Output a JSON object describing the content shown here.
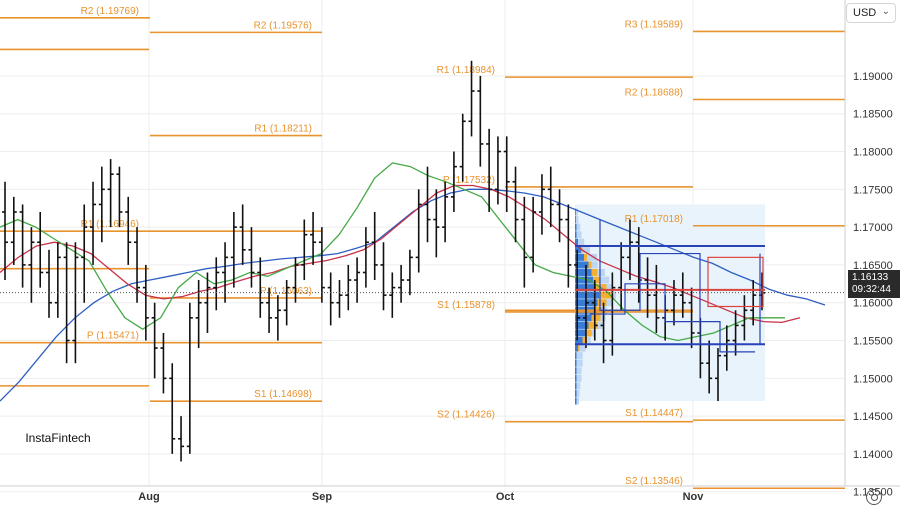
{
  "currency": {
    "label": "USD",
    "chevron": "chevron-down-icon"
  },
  "logo": {
    "text": "InstaFintech"
  },
  "price_tag": {
    "price": "1.16133",
    "time": "09:32:44"
  },
  "settings_icon": "gear-icon",
  "colors": {
    "pivot": "#e8932e",
    "blue_ma": "#2f5ec4",
    "red_ma": "#c8324a",
    "green_ma": "#45a845",
    "profile_dark": "#3a7bd5",
    "profile_light": "#b9d3ef",
    "profile_orange": "#f2b134",
    "range_box": "#e9f3fc",
    "level_blue": "#2843b8",
    "level_red": "#d9453d"
  },
  "chart_data": {
    "type": "ohlc",
    "ylim": [
      1.132,
      1.1985
    ],
    "yticks": [
      "1.19000",
      "1.18500",
      "1.18000",
      "1.17500",
      "1.17000",
      "1.16500",
      "1.16000",
      "1.15500",
      "1.15000",
      "1.14500",
      "1.14000",
      "1.13500"
    ],
    "xticks": [
      "Aug",
      "Sep",
      "Oct",
      "Nov"
    ],
    "current_price": 1.16133,
    "pivot_levels": [
      {
        "label": "R2 (1.19769)",
        "value": 1.19769
      },
      {
        "label": "R2 (1.19576)",
        "value": 1.19576
      },
      {
        "label": "R1 (1.18211)",
        "value": 1.18211
      },
      {
        "label": "P (1.16063)",
        "value": 1.16063
      },
      {
        "label": "S1 (1.14698)",
        "value": 1.14698
      },
      {
        "label": "R1 (1.18984)",
        "value": 1.18984
      },
      {
        "label": "P (1.17532)",
        "value": 1.17532
      },
      {
        "label": "S1 (1.15878)",
        "value": 1.15878
      },
      {
        "label": "S2 (1.14426)",
        "value": 1.14426
      },
      {
        "label": "R3 (1.19589)",
        "value": 1.19589
      },
      {
        "label": "R2 (1.18688)",
        "value": 1.18688
      },
      {
        "label": "R1 (1.17018)",
        "value": 1.17018
      },
      {
        "label": "S1 (1.14447)",
        "value": 1.14447
      },
      {
        "label": "S2 (1.13546)",
        "value": 1.13546
      },
      {
        "label": "R1 (1.16946)",
        "value": 1.16946
      },
      {
        "label": "P (1.15471)",
        "value": 1.15471
      }
    ],
    "bars": [
      [
        1.172,
        1.176,
        1.163,
        1.168
      ],
      [
        1.168,
        1.174,
        1.165,
        1.172
      ],
      [
        1.172,
        1.173,
        1.162,
        1.165
      ],
      [
        1.165,
        1.17,
        1.16,
        1.168
      ],
      [
        1.168,
        1.172,
        1.162,
        1.164
      ],
      [
        1.164,
        1.167,
        1.158,
        1.16
      ],
      [
        1.16,
        1.168,
        1.158,
        1.166
      ],
      [
        1.166,
        1.168,
        1.152,
        1.155
      ],
      [
        1.155,
        1.168,
        1.152,
        1.166
      ],
      [
        1.166,
        1.173,
        1.16,
        1.17
      ],
      [
        1.17,
        1.176,
        1.165,
        1.173
      ],
      [
        1.173,
        1.178,
        1.168,
        1.175
      ],
      [
        1.175,
        1.179,
        1.17,
        1.177
      ],
      [
        1.177,
        1.178,
        1.17,
        1.172
      ],
      [
        1.172,
        1.174,
        1.165,
        1.168
      ],
      [
        1.168,
        1.17,
        1.16,
        1.162
      ],
      [
        1.162,
        1.165,
        1.155,
        1.158
      ],
      [
        1.158,
        1.16,
        1.15,
        1.154
      ],
      [
        1.154,
        1.156,
        1.148,
        1.15
      ],
      [
        1.15,
        1.152,
        1.14,
        1.142
      ],
      [
        1.142,
        1.145,
        1.139,
        1.141
      ],
      [
        1.141,
        1.16,
        1.14,
        1.158
      ],
      [
        1.158,
        1.163,
        1.154,
        1.16
      ],
      [
        1.16,
        1.164,
        1.156,
        1.162
      ],
      [
        1.162,
        1.166,
        1.159,
        1.164
      ],
      [
        1.164,
        1.168,
        1.16,
        1.166
      ],
      [
        1.166,
        1.172,
        1.162,
        1.17
      ],
      [
        1.17,
        1.173,
        1.165,
        1.167
      ],
      [
        1.167,
        1.17,
        1.162,
        1.164
      ],
      [
        1.164,
        1.166,
        1.158,
        1.16
      ],
      [
        1.16,
        1.162,
        1.156,
        1.158
      ],
      [
        1.158,
        1.161,
        1.155,
        1.159
      ],
      [
        1.159,
        1.163,
        1.157,
        1.162
      ],
      [
        1.162,
        1.166,
        1.16,
        1.165
      ],
      [
        1.165,
        1.171,
        1.163,
        1.169
      ],
      [
        1.169,
        1.172,
        1.165,
        1.168
      ],
      [
        1.168,
        1.17,
        1.16,
        1.162
      ],
      [
        1.162,
        1.164,
        1.157,
        1.16
      ],
      [
        1.16,
        1.163,
        1.158,
        1.161
      ],
      [
        1.161,
        1.165,
        1.159,
        1.163
      ],
      [
        1.163,
        1.166,
        1.16,
        1.164
      ],
      [
        1.164,
        1.17,
        1.162,
        1.168
      ],
      [
        1.168,
        1.172,
        1.163,
        1.165
      ],
      [
        1.165,
        1.168,
        1.159,
        1.161
      ],
      [
        1.161,
        1.164,
        1.158,
        1.162
      ],
      [
        1.162,
        1.165,
        1.16,
        1.163
      ],
      [
        1.163,
        1.167,
        1.161,
        1.166
      ],
      [
        1.166,
        1.175,
        1.164,
        1.173
      ],
      [
        1.173,
        1.178,
        1.168,
        1.171
      ],
      [
        1.171,
        1.175,
        1.166,
        1.17
      ],
      [
        1.17,
        1.176,
        1.168,
        1.174
      ],
      [
        1.174,
        1.18,
        1.172,
        1.178
      ],
      [
        1.178,
        1.185,
        1.176,
        1.184
      ],
      [
        1.184,
        1.192,
        1.182,
        1.188
      ],
      [
        1.188,
        1.19,
        1.178,
        1.181
      ],
      [
        1.181,
        1.183,
        1.172,
        1.175
      ],
      [
        1.175,
        1.182,
        1.173,
        1.18
      ],
      [
        1.18,
        1.182,
        1.172,
        1.176
      ],
      [
        1.176,
        1.178,
        1.168,
        1.171
      ],
      [
        1.171,
        1.174,
        1.162,
        1.166
      ],
      [
        1.166,
        1.174,
        1.164,
        1.172
      ],
      [
        1.172,
        1.177,
        1.169,
        1.175
      ],
      [
        1.175,
        1.178,
        1.17,
        1.173
      ],
      [
        1.173,
        1.175,
        1.168,
        1.171
      ],
      [
        1.171,
        1.173,
        1.162,
        1.165
      ],
      [
        1.165,
        1.167,
        1.155,
        1.158
      ],
      [
        1.158,
        1.165,
        1.154,
        1.16
      ],
      [
        1.16,
        1.163,
        1.155,
        1.157
      ],
      [
        1.157,
        1.16,
        1.152,
        1.155
      ],
      [
        1.155,
        1.164,
        1.153,
        1.162
      ],
      [
        1.162,
        1.168,
        1.159,
        1.166
      ],
      [
        1.166,
        1.171,
        1.163,
        1.168
      ],
      [
        1.168,
        1.17,
        1.16,
        1.163
      ],
      [
        1.163,
        1.166,
        1.158,
        1.161
      ],
      [
        1.161,
        1.165,
        1.156,
        1.158
      ],
      [
        1.158,
        1.161,
        1.155,
        1.159
      ],
      [
        1.159,
        1.163,
        1.157,
        1.161
      ],
      [
        1.161,
        1.164,
        1.158,
        1.16
      ],
      [
        1.16,
        1.162,
        1.154,
        1.156
      ],
      [
        1.156,
        1.158,
        1.15,
        1.152
      ],
      [
        1.152,
        1.155,
        1.148,
        1.15
      ],
      [
        1.15,
        1.154,
        1.147,
        1.153
      ],
      [
        1.153,
        1.157,
        1.151,
        1.155
      ],
      [
        1.155,
        1.159,
        1.153,
        1.157
      ],
      [
        1.157,
        1.161,
        1.155,
        1.159
      ],
      [
        1.159,
        1.163,
        1.157,
        1.161
      ],
      [
        1.161,
        1.164,
        1.159,
        1.1613
      ]
    ],
    "series": [
      {
        "key": "blue_ma",
        "values": [
          1.147,
          1.1495,
          1.1525,
          1.1555,
          1.158,
          1.16,
          1.1615,
          1.1625,
          1.163,
          1.1635,
          1.164,
          1.1645,
          1.1648,
          1.1652,
          1.1655,
          1.1658,
          1.166,
          1.1662,
          1.1665,
          1.1672,
          1.168,
          1.17,
          1.172,
          1.1735,
          1.1745,
          1.175,
          1.175,
          1.1748,
          1.1745,
          1.174,
          1.173,
          1.172,
          1.171,
          1.17,
          1.169,
          1.168,
          1.167,
          1.166,
          1.1652,
          1.164,
          1.163,
          1.1618,
          1.161,
          1.1605,
          1.1597
        ]
      },
      {
        "key": "red_ma",
        "values": [
          1.164,
          1.166,
          1.1675,
          1.168,
          1.1675,
          1.1665,
          1.1645,
          1.1625,
          1.161,
          1.1605,
          1.1608,
          1.1615,
          1.162,
          1.1628,
          1.1635,
          1.164,
          1.1648,
          1.1652,
          1.1656,
          1.1662,
          1.167,
          1.1685,
          1.1705,
          1.1725,
          1.1745,
          1.1755,
          1.1755,
          1.175,
          1.174,
          1.1725,
          1.171,
          1.169,
          1.167,
          1.1655,
          1.1645,
          1.1635,
          1.1628,
          1.162,
          1.161,
          1.16,
          1.159,
          1.158,
          1.1575,
          1.1574,
          1.158
        ]
      },
      {
        "key": "green_ma",
        "values": [
          1.17,
          1.171,
          1.17,
          1.1685,
          1.167,
          1.1655,
          1.1615,
          1.158,
          1.1565,
          1.158,
          1.162,
          1.164,
          1.1625,
          1.163,
          1.164,
          1.1635,
          1.1645,
          1.1655,
          1.1665,
          1.169,
          1.1725,
          1.1765,
          1.1785,
          1.178,
          1.1768,
          1.176,
          1.175,
          1.174,
          1.171,
          1.168,
          1.165,
          1.164,
          1.1635,
          1.163,
          1.1615,
          1.159,
          1.157,
          1.1555,
          1.155,
          1.1555,
          1.156,
          1.157,
          1.158,
          1.158,
          1.158
        ]
      }
    ],
    "volume_profile": [
      [
        1.166,
        0.3,
        0.4,
        0.1
      ],
      [
        1.165,
        0.45,
        0.25,
        0.1
      ],
      [
        1.164,
        0.55,
        0.3,
        0.2
      ],
      [
        1.163,
        0.6,
        0.35,
        0.25
      ],
      [
        1.162,
        0.7,
        0.25,
        0.35
      ],
      [
        1.161,
        0.8,
        0.2,
        0.4
      ],
      [
        1.16,
        0.75,
        0.25,
        0.3
      ],
      [
        1.159,
        0.65,
        0.2,
        0.25
      ],
      [
        1.158,
        0.55,
        0.2,
        0.3
      ],
      [
        1.157,
        0.45,
        0.2,
        0.3
      ],
      [
        1.156,
        0.35,
        0.15,
        0.2
      ],
      [
        1.155,
        0.25,
        0.15,
        0.15
      ],
      [
        1.154,
        0.1,
        0.25,
        0.05
      ],
      [
        1.153,
        0.05,
        0.25,
        0.0
      ],
      [
        1.152,
        0.05,
        0.25,
        0.0
      ],
      [
        1.151,
        0.05,
        0.2,
        0.0
      ],
      [
        1.15,
        0.05,
        0.2,
        0.0
      ],
      [
        1.149,
        0.05,
        0.15,
        0.0
      ],
      [
        1.148,
        0.05,
        0.12,
        0.0
      ],
      [
        1.147,
        0.05,
        0.1,
        0.0
      ],
      [
        1.167,
        0.2,
        0.3,
        0.05
      ],
      [
        1.168,
        0.1,
        0.25,
        0.0
      ],
      [
        1.169,
        0.05,
        0.2,
        0.0
      ],
      [
        1.17,
        0.05,
        0.15,
        0.0
      ],
      [
        1.171,
        0.03,
        0.1,
        0.0
      ],
      [
        1.172,
        0.03,
        0.08,
        0.0
      ]
    ],
    "range_levels": {
      "box_top": 1.173,
      "box_bottom": 1.147,
      "vah": 1.1675,
      "val": 1.1545,
      "poc": 1.1617
    }
  }
}
